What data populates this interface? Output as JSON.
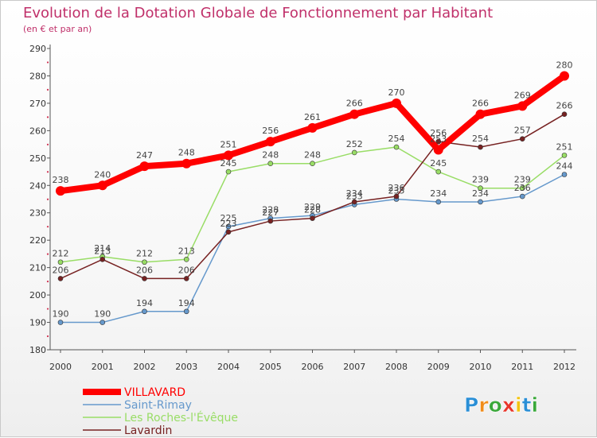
{
  "chart_data": {
    "type": "line",
    "title": "Evolution de la Dotation Globale de Fonctionnement par Habitant",
    "subtitle": "(en € et par an)",
    "xlabel": "",
    "ylabel": "",
    "x": [
      "2000",
      "2001",
      "2002",
      "2003",
      "2004",
      "2005",
      "2006",
      "2007",
      "2008",
      "2009",
      "2010",
      "2011",
      "2012"
    ],
    "ylim": [
      180,
      290
    ],
    "yticks": [
      180,
      190,
      200,
      210,
      220,
      230,
      240,
      250,
      260,
      270,
      280,
      290
    ],
    "grid": false,
    "legend_position": "bottom-left",
    "series": [
      {
        "name": "VILLAVARD",
        "color": "#ff0000",
        "values": [
          238,
          240,
          247,
          248,
          251,
          256,
          261,
          266,
          270,
          253,
          266,
          269,
          280
        ]
      },
      {
        "name": "Saint-Rimay",
        "color": "#6699cc",
        "values": [
          190,
          190,
          194,
          194,
          225,
          228,
          229,
          233,
          235,
          234,
          234,
          236,
          244
        ]
      },
      {
        "name": "Les Roches-l'Évêque",
        "color": "#99dd66",
        "values": [
          212,
          214,
          212,
          213,
          245,
          248,
          248,
          252,
          254,
          245,
          239,
          239,
          251
        ]
      },
      {
        "name": "Lavardin",
        "color": "#772222",
        "values": [
          206,
          213,
          206,
          206,
          223,
          227,
          228,
          234,
          236,
          256,
          254,
          257,
          266
        ]
      }
    ]
  },
  "branding": {
    "logo_text": "Proxiti",
    "letter_colors": [
      "#2a8fd6",
      "#f08c1a",
      "#3aa83a",
      "#e8362b",
      "#f2c413",
      "#2a8fd6",
      "#3aa83a"
    ]
  }
}
